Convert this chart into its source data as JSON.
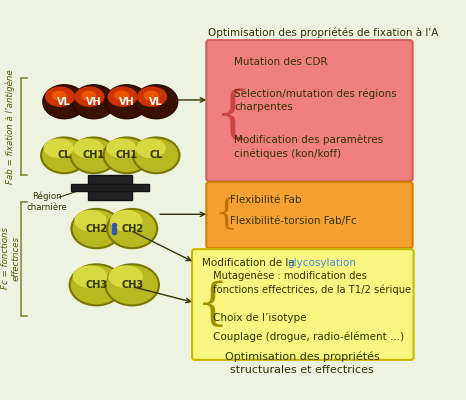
{
  "bg_color": "#eef2e0",
  "title_top": "Optimisation des propriétés de fixation à l’A",
  "title_bottom1": "Optimisation des propriétés",
  "title_bottom2": "structurales et effectrices",
  "pink_box": {
    "color": "#f08080",
    "edge_color": "#d06060",
    "brace_color": "#cc4444",
    "lines": [
      "Mutation des CDR",
      "Sélection/mutation des régions\ncharpentes",
      "Modification des paramètres\ncinétiques (kon/koff)"
    ]
  },
  "orange_box": {
    "color": "#f5a030",
    "edge_color": "#d08000",
    "brace_color": "#c07000",
    "lines": [
      "Flexibilité Fab",
      "Flexibilité-torsion Fab/Fc"
    ]
  },
  "yellow_box": {
    "color": "#f8f580",
    "edge_color": "#c8b800",
    "glyco_text": "Modification de la ",
    "glyco_word": "glycosylation",
    "glyco_color": "#4a90d9",
    "brace_color": "#a09000",
    "lines": [
      "Mutagenèse : modification des\nfonctions effectrices, de la T1/2 sérique",
      "Choix de l’isotype",
      "Couplage (drogue, radio-élément ...)"
    ]
  },
  "fab_label": "Fab = fixation à l’antigène",
  "fc_label": "Fc = fonctions\neffectrices",
  "hinge_label": "Région\ncharnière",
  "text_color": "#333300",
  "label_color_dark": "#555500",
  "bracket_color": "#888844",
  "arrow_color": "#333300",
  "vdomain_outer": "#3a1000",
  "vdomain_mid": "#cc3300",
  "vdomain_inner": "#ee5500",
  "ch_face": "#b8b820",
  "ch_edge": "#787800",
  "ch_highlight": "#d8d840",
  "hinge_color": "#222222",
  "blue_dot_color": "#3355aa"
}
